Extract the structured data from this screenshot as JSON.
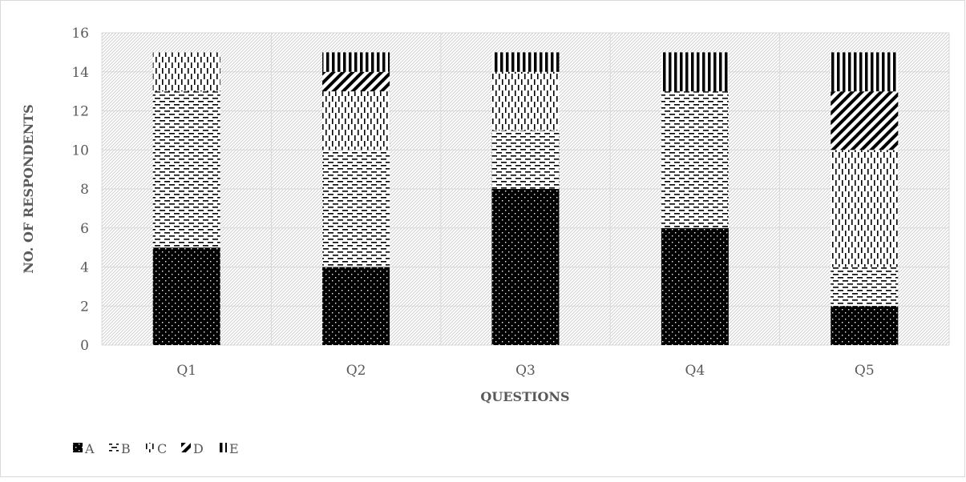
{
  "chart_data": {
    "type": "bar",
    "stacked": true,
    "categories": [
      "Q1",
      "Q2",
      "Q3",
      "Q4",
      "Q5"
    ],
    "series": [
      {
        "name": "A",
        "values": [
          5,
          4,
          8,
          6,
          2
        ],
        "pattern": "dots"
      },
      {
        "name": "B",
        "values": [
          8,
          6,
          3,
          7,
          2
        ],
        "pattern": "hdash"
      },
      {
        "name": "C",
        "values": [
          2,
          3,
          3,
          0,
          6
        ],
        "pattern": "vdash"
      },
      {
        "name": "D",
        "values": [
          0,
          1,
          0,
          0,
          3
        ],
        "pattern": "diag"
      },
      {
        "name": "E",
        "values": [
          0,
          1,
          1,
          2,
          2
        ],
        "pattern": "vstripe"
      }
    ],
    "title": "",
    "xlabel": "QUESTIONS",
    "ylabel": "NO. OF RESPONDENTS",
    "ylim": [
      0,
      16
    ],
    "yticks": [
      0,
      2,
      4,
      6,
      8,
      10,
      12,
      14,
      16
    ],
    "grid": true,
    "legend": "bottom-left",
    "colors": {
      "bar": "#000000",
      "plot_hatch": "#c8c8c8",
      "grid": "#d9d9d9",
      "text": "#595959"
    }
  }
}
